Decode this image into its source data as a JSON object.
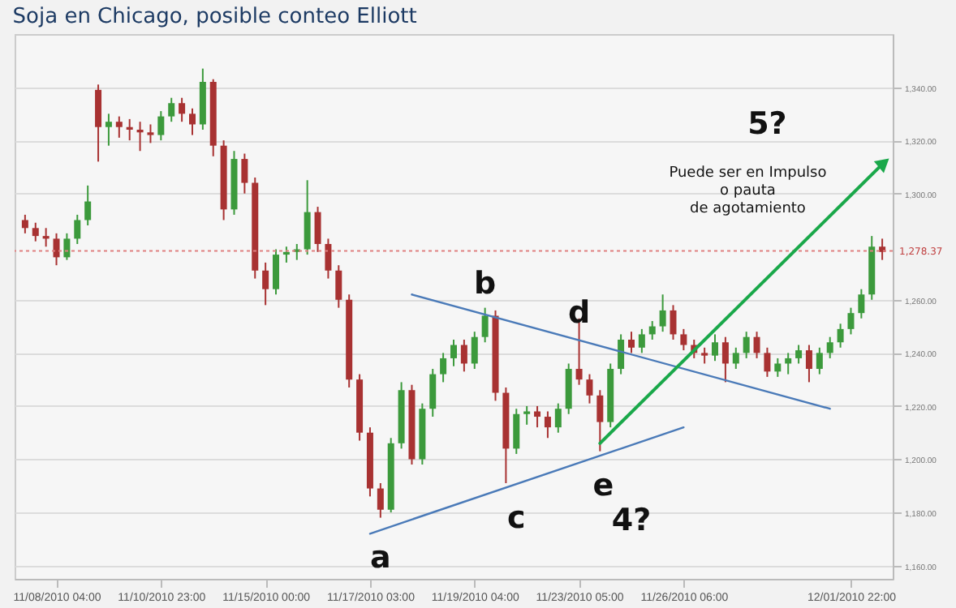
{
  "chart_data": {
    "type": "candlestick",
    "title": "Soja en Chicago, posible conteo Elliott",
    "categories": [
      null,
      null,
      null,
      "11/08/2010 04:00",
      null,
      null,
      null,
      null,
      null,
      null,
      null,
      null,
      null,
      "11/10/2010 23:00",
      null,
      null,
      null,
      null,
      null,
      null,
      null,
      null,
      null,
      "11/15/2010 00:00",
      null,
      null,
      null,
      null,
      null,
      null,
      null,
      null,
      null,
      "11/17/2010 03:00",
      null,
      null,
      null,
      null,
      null,
      null,
      null,
      null,
      null,
      "11/19/2010 04:00",
      null,
      null,
      null,
      null,
      null,
      null,
      null,
      null,
      null,
      "11/23/2010 05:00",
      null,
      null,
      null,
      null,
      null,
      null,
      null,
      null,
      null,
      "11/26/2010 06:00",
      null,
      null,
      null,
      null,
      null,
      null,
      null,
      null,
      null,
      null,
      null,
      null,
      null,
      null,
      null,
      "12/01/2010 22:00",
      null,
      null,
      null
    ],
    "ohlc": [
      [
        1290,
        1292,
        1285,
        1287
      ],
      [
        1287,
        1289,
        1282,
        1284
      ],
      [
        1284,
        1287,
        1280,
        1283
      ],
      [
        1283,
        1285,
        1273,
        1276
      ],
      [
        1276,
        1285,
        1275,
        1283
      ],
      [
        1283,
        1292,
        1281,
        1290
      ],
      [
        1290,
        1303,
        1288,
        1297
      ],
      [
        1339,
        1341,
        1312,
        1325
      ],
      [
        1325,
        1330,
        1318,
        1327
      ],
      [
        1327,
        1329,
        1321,
        1325
      ],
      [
        1325,
        1328,
        1320,
        1324
      ],
      [
        1324,
        1327,
        1316,
        1323
      ],
      [
        1323,
        1326,
        1319,
        1322
      ],
      [
        1322,
        1331,
        1320,
        1329
      ],
      [
        1329,
        1336,
        1327,
        1334
      ],
      [
        1334,
        1336,
        1327,
        1330
      ],
      [
        1330,
        1332,
        1322,
        1326
      ],
      [
        1326,
        1347,
        1324,
        1342
      ],
      [
        1342,
        1343,
        1314,
        1318
      ],
      [
        1318,
        1320,
        1290,
        1294
      ],
      [
        1294,
        1316,
        1292,
        1313
      ],
      [
        1313,
        1315,
        1300,
        1304
      ],
      [
        1304,
        1306,
        1268,
        1271
      ],
      [
        1271,
        1274,
        1258,
        1264
      ],
      [
        1264,
        1279,
        1262,
        1277
      ],
      [
        1277,
        1280,
        1274,
        1278
      ],
      [
        1278,
        1281,
        1275,
        1279
      ],
      [
        1279,
        1305,
        1277,
        1293
      ],
      [
        1293,
        1295,
        1278,
        1281
      ],
      [
        1281,
        1283,
        1268,
        1271
      ],
      [
        1271,
        1273,
        1257,
        1260
      ],
      [
        1260,
        1262,
        1227,
        1230
      ],
      [
        1230,
        1232,
        1207,
        1210
      ],
      [
        1210,
        1212,
        1186,
        1189
      ],
      [
        1189,
        1191,
        1178,
        1181
      ],
      [
        1181,
        1208,
        1180,
        1206
      ],
      [
        1206,
        1229,
        1204,
        1226
      ],
      [
        1226,
        1228,
        1198,
        1200
      ],
      [
        1200,
        1221,
        1198,
        1219
      ],
      [
        1219,
        1234,
        1216,
        1232
      ],
      [
        1232,
        1240,
        1229,
        1238
      ],
      [
        1238,
        1245,
        1235,
        1243
      ],
      [
        1243,
        1245,
        1233,
        1236
      ],
      [
        1236,
        1248,
        1234,
        1246
      ],
      [
        1246,
        1257,
        1244,
        1254
      ],
      [
        1254,
        1256,
        1222,
        1225
      ],
      [
        1225,
        1227,
        1191,
        1204
      ],
      [
        1204,
        1219,
        1202,
        1217
      ],
      [
        1217,
        1220,
        1213,
        1218
      ],
      [
        1218,
        1220,
        1212,
        1216
      ],
      [
        1216,
        1218,
        1208,
        1212
      ],
      [
        1212,
        1221,
        1210,
        1219
      ],
      [
        1219,
        1236,
        1217,
        1234
      ],
      [
        1234,
        1253,
        1228,
        1230
      ],
      [
        1230,
        1232,
        1221,
        1224
      ],
      [
        1224,
        1226,
        1203,
        1214
      ],
      [
        1214,
        1236,
        1212,
        1234
      ],
      [
        1234,
        1247,
        1232,
        1245
      ],
      [
        1245,
        1248,
        1240,
        1242
      ],
      [
        1242,
        1249,
        1240,
        1247
      ],
      [
        1247,
        1252,
        1245,
        1250
      ],
      [
        1250,
        1262,
        1248,
        1256
      ],
      [
        1256,
        1258,
        1245,
        1247
      ],
      [
        1247,
        1249,
        1241,
        1243
      ],
      [
        1243,
        1245,
        1238,
        1240
      ],
      [
        1240,
        1242,
        1236,
        1239
      ],
      [
        1239,
        1247,
        1237,
        1244
      ],
      [
        1244,
        1246,
        1229,
        1236
      ],
      [
        1236,
        1242,
        1234,
        1240
      ],
      [
        1240,
        1248,
        1238,
        1246
      ],
      [
        1246,
        1248,
        1238,
        1240
      ],
      [
        1240,
        1242,
        1231,
        1233
      ],
      [
        1233,
        1238,
        1231,
        1236
      ],
      [
        1236,
        1240,
        1232,
        1238
      ],
      [
        1238,
        1243,
        1236,
        1241
      ],
      [
        1241,
        1243,
        1229,
        1234
      ],
      [
        1234,
        1242,
        1232,
        1240
      ],
      [
        1240,
        1246,
        1238,
        1244
      ],
      [
        1244,
        1251,
        1242,
        1249
      ],
      [
        1249,
        1257,
        1247,
        1255
      ],
      [
        1255,
        1264,
        1253,
        1262
      ],
      [
        1262,
        1284,
        1260,
        1280
      ],
      [
        1280,
        1283,
        1275,
        1278
      ]
    ],
    "colors": [
      "#a83232",
      "#a83232",
      "#a83232",
      "#a83232",
      "#3c9a3c",
      "#3c9a3c",
      "#3c9a3c",
      "#a83232",
      "#3c9a3c",
      "#a83232",
      "#a83232",
      "#a83232",
      "#a83232",
      "#3c9a3c",
      "#3c9a3c",
      "#a83232",
      "#a83232",
      "#3c9a3c",
      "#a83232",
      "#a83232",
      "#3c9a3c",
      "#a83232",
      "#a83232",
      "#a83232",
      "#3c9a3c",
      "#3c9a3c",
      "#3c9a3c",
      "#3c9a3c",
      "#a83232",
      "#a83232",
      "#a83232",
      "#a83232",
      "#a83232",
      "#a83232",
      "#a83232",
      "#3c9a3c",
      "#3c9a3c",
      "#a83232",
      "#3c9a3c",
      "#3c9a3c",
      "#3c9a3c",
      "#3c9a3c",
      "#a83232",
      "#3c9a3c",
      "#3c9a3c",
      "#a83232",
      "#a83232",
      "#3c9a3c",
      "#3c9a3c",
      "#a83232",
      "#a83232",
      "#3c9a3c",
      "#3c9a3c",
      "#a83232",
      "#a83232",
      "#a83232",
      "#3c9a3c",
      "#3c9a3c",
      "#a83232",
      "#3c9a3c",
      "#3c9a3c",
      "#3c9a3c",
      "#a83232",
      "#a83232",
      "#a83232",
      "#a83232",
      "#3c9a3c",
      "#a83232",
      "#3c9a3c",
      "#3c9a3c",
      "#a83232",
      "#a83232",
      "#3c9a3c",
      "#3c9a3c",
      "#3c9a3c",
      "#a83232",
      "#3c9a3c",
      "#3c9a3c",
      "#3c9a3c",
      "#3c9a3c",
      "#3c9a3c",
      "#3c9a3c",
      "#a83232"
    ],
    "series": [
      {
        "type": "line",
        "color": "#4a7ab8",
        "values": [
          null,
          null,
          null,
          null,
          null,
          null,
          null,
          null,
          null,
          null,
          null,
          null,
          null,
          null,
          null,
          null,
          null,
          null,
          null,
          null,
          null,
          null,
          null,
          null,
          null,
          null,
          null,
          null,
          null,
          null,
          null,
          null,
          null,
          null,
          null,
          null,
          null,
          1262,
          null,
          null,
          null,
          null,
          null,
          null,
          null,
          null,
          null,
          null,
          null,
          null,
          null,
          null,
          null,
          null,
          null,
          null,
          null,
          null,
          null,
          null,
          null,
          null,
          null,
          null,
          null,
          null,
          null,
          null,
          null,
          null,
          null,
          null,
          null,
          null,
          null,
          null,
          null,
          1219,
          null,
          null,
          null,
          null,
          null
        ]
      },
      {
        "type": "line",
        "color": "#4a7ab8",
        "values": [
          null,
          null,
          null,
          null,
          null,
          null,
          null,
          null,
          null,
          null,
          null,
          null,
          null,
          null,
          null,
          null,
          null,
          null,
          null,
          null,
          null,
          null,
          null,
          null,
          null,
          null,
          null,
          null,
          null,
          null,
          null,
          null,
          null,
          1172,
          null,
          null,
          null,
          null,
          null,
          null,
          null,
          null,
          null,
          null,
          null,
          null,
          null,
          null,
          null,
          null,
          null,
          null,
          null,
          null,
          null,
          null,
          null,
          null,
          null,
          null,
          null,
          null,
          null,
          1212,
          null,
          null,
          null,
          null,
          null,
          null,
          null,
          null,
          null,
          null,
          null,
          null,
          null,
          null,
          null,
          null,
          null,
          null,
          null
        ]
      },
      {
        "type": "line",
        "color": "#1aa84a",
        "marker": "triangle",
        "values": [
          null,
          null,
          null,
          null,
          null,
          null,
          null,
          null,
          null,
          null,
          null,
          null,
          null,
          null,
          null,
          null,
          null,
          null,
          null,
          null,
          null,
          null,
          null,
          null,
          null,
          null,
          null,
          null,
          null,
          null,
          null,
          null,
          null,
          null,
          null,
          null,
          null,
          null,
          null,
          null,
          null,
          null,
          null,
          null,
          null,
          null,
          null,
          null,
          null,
          null,
          null,
          null,
          null,
          null,
          null,
          1206,
          null,
          null,
          null,
          null,
          null,
          null,
          null,
          null,
          null,
          null,
          null,
          null,
          null,
          null,
          null,
          null,
          null,
          null,
          null,
          null,
          null,
          null,
          null,
          null,
          null,
          null,
          1311
        ]
      }
    ],
    "ylim": [
      1155,
      1360
    ],
    "yticks": [
      {
        "value": 1160,
        "label": "1,160.00"
      },
      {
        "value": 1180,
        "label": "1,180.00"
      },
      {
        "value": 1200,
        "label": "1,200.00"
      },
      {
        "value": 1220,
        "label": "1,220.00"
      },
      {
        "value": 1240,
        "label": "1,240.00"
      },
      {
        "value": 1260,
        "label": "1,260.00"
      },
      {
        "value": 1300,
        "label": "1,300.00"
      },
      {
        "value": 1320,
        "label": "1,320.00"
      },
      {
        "value": 1340,
        "label": "1,340.00"
      }
    ],
    "grid": "y",
    "ref_lines": [
      {
        "axis": "y",
        "value": 1278.37,
        "label": "1,278.37",
        "color": "#e08080",
        "line_style": "dotted"
      }
    ],
    "annotations": [
      "a",
      "b",
      "c",
      "d",
      "e",
      "4?",
      "5?",
      "Puede ser en Impulso\no pauta\nde agotamiento"
    ]
  }
}
